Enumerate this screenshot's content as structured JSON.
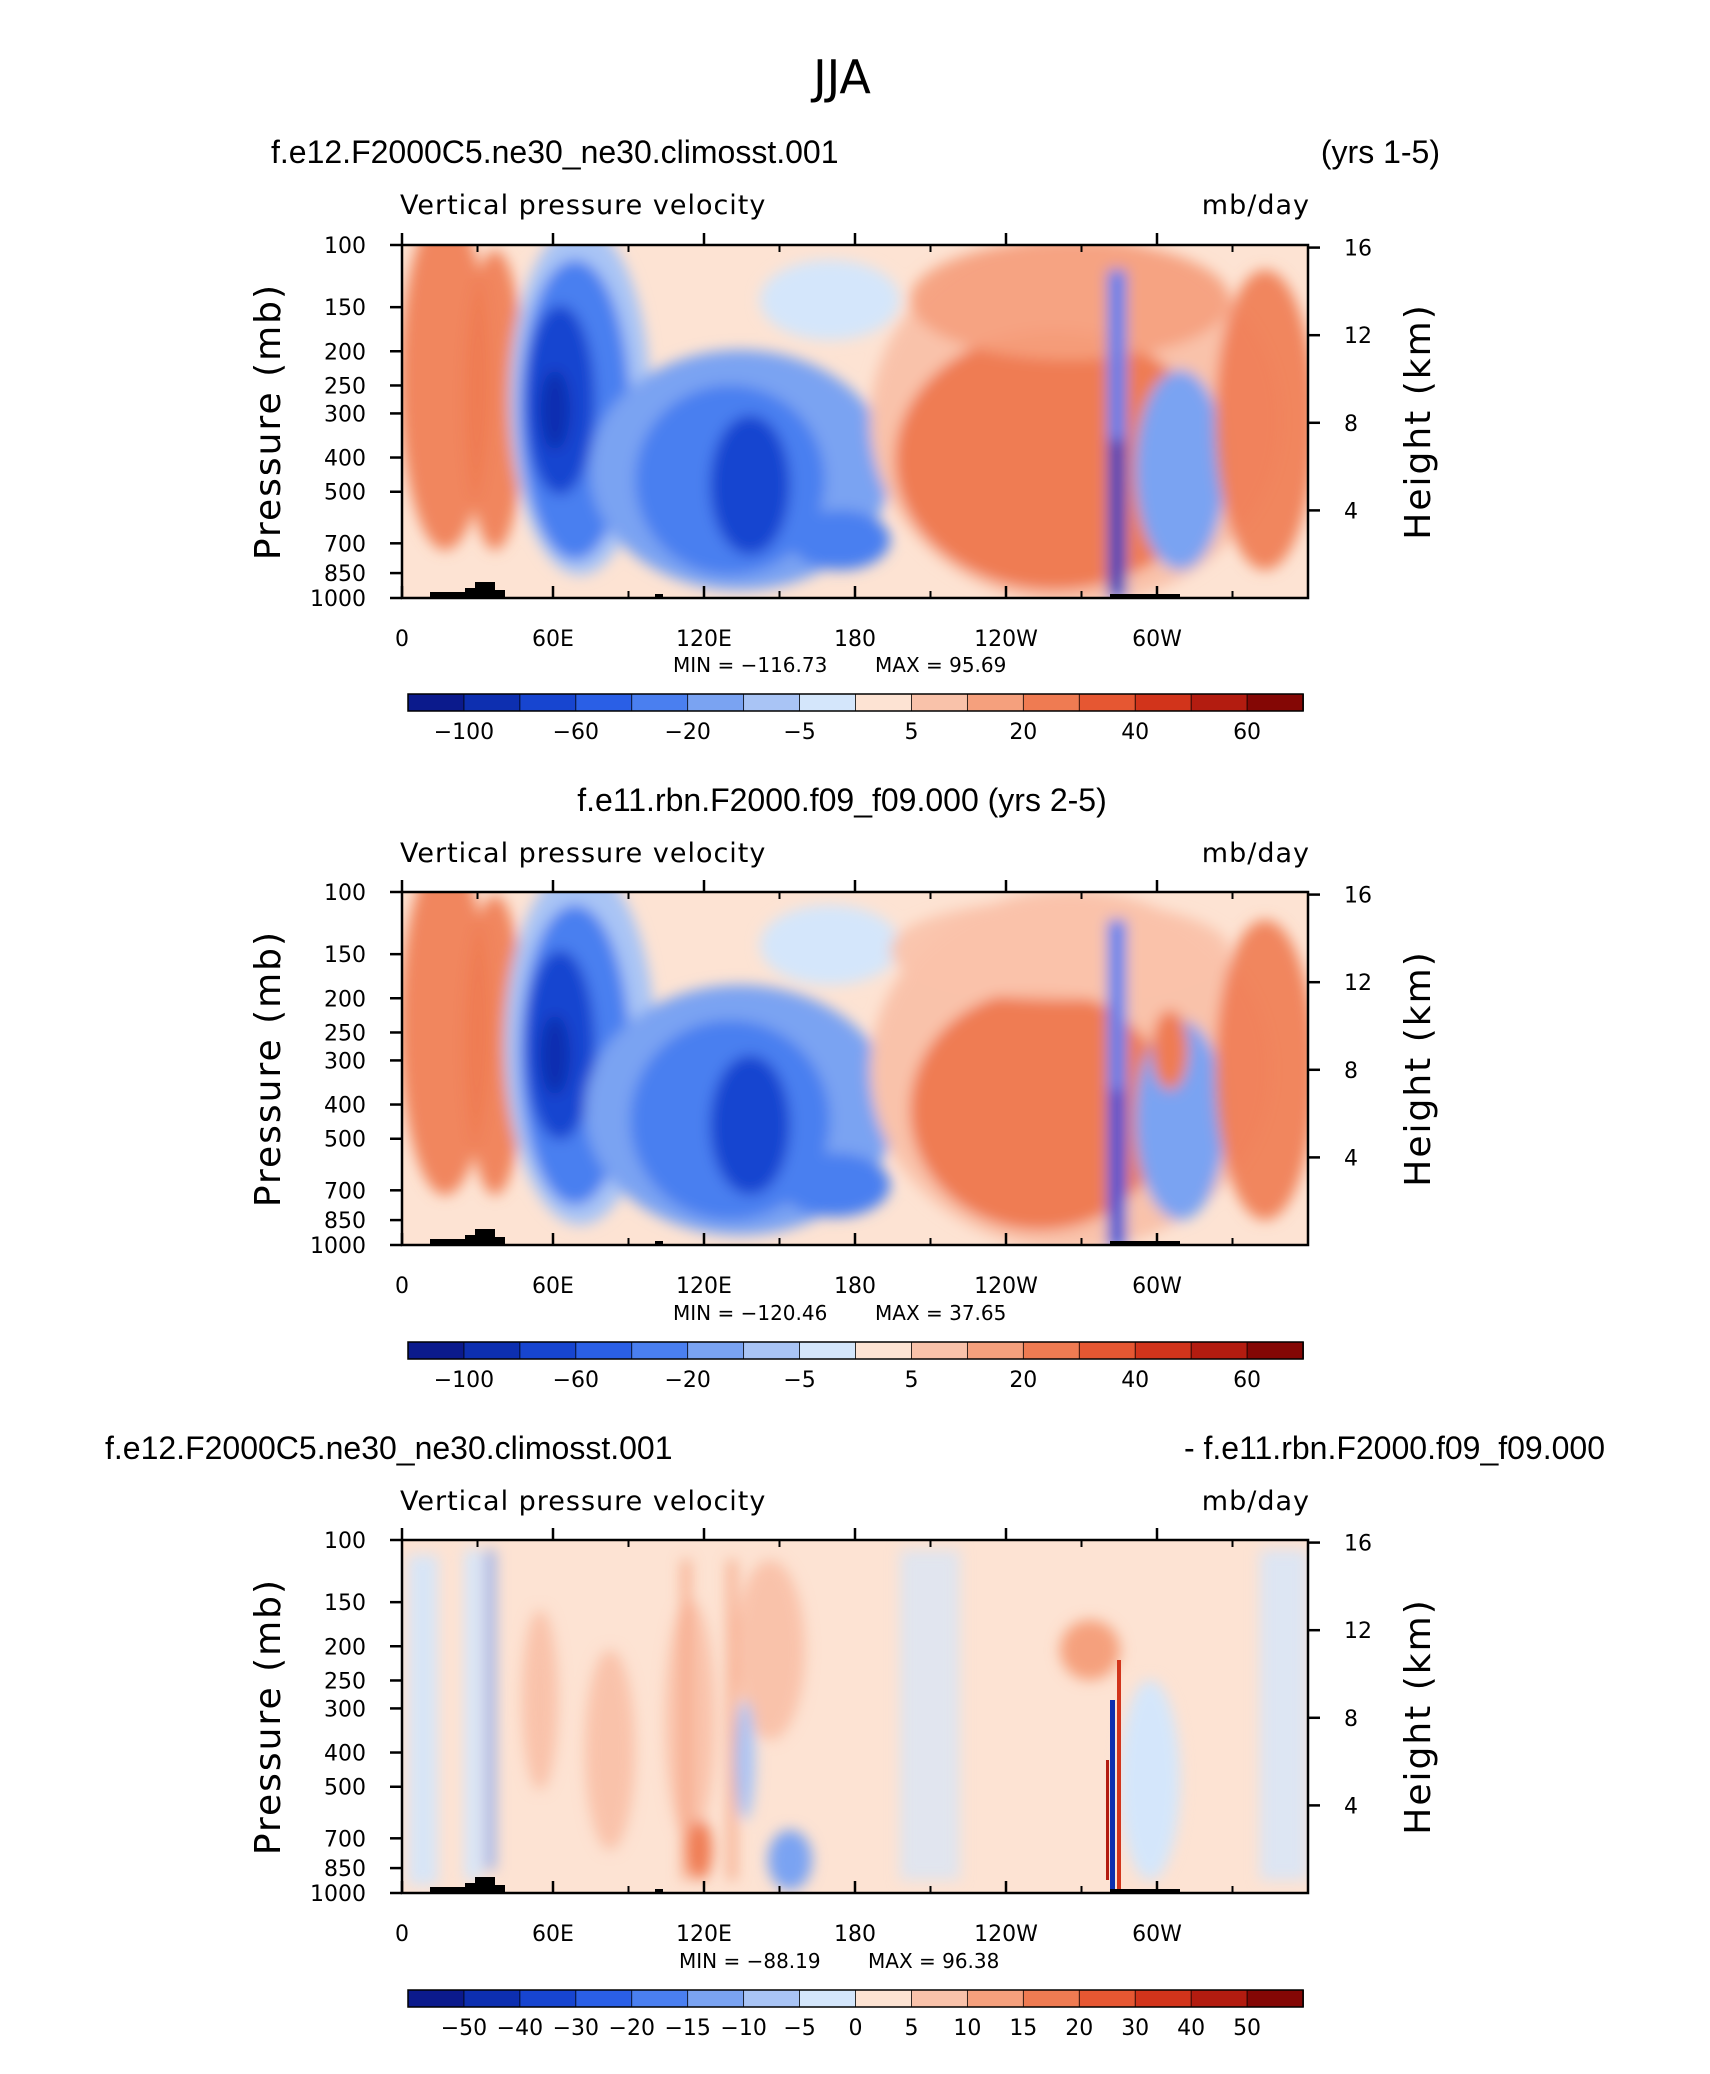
{
  "chart_data": {
    "type": "contour-panels",
    "title": "JJA",
    "x_ticks": [
      "0",
      "60E",
      "120E",
      "180",
      "120W",
      "60W"
    ],
    "left_axis": {
      "label": "Pressure (mb)",
      "ticks": [
        "100",
        "150",
        "200",
        "250",
        "300",
        "400",
        "500",
        "700",
        "850",
        "1000"
      ],
      "values": [
        100,
        150,
        200,
        250,
        300,
        400,
        500,
        700,
        850,
        1000
      ]
    },
    "right_axis": {
      "label": "Height (km)",
      "ticks": [
        "4",
        "8",
        "12",
        "16"
      ],
      "values": [
        4,
        8,
        12,
        16
      ]
    },
    "panels": [
      {
        "left_title": "f.e12.F2000C5.ne30_ne30.climosst.001",
        "right_title": "(yrs 1-5)",
        "center_title": "",
        "variable": "Vertical pressure velocity",
        "units": "mb/day",
        "min_text": "MIN =  −116.73",
        "max_text": "MAX =   95.69",
        "levels": [
          -100,
          -80,
          -60,
          -40,
          -20,
          -10,
          -5,
          0,
          5,
          10,
          20,
          30,
          40,
          50,
          60,
          80
        ],
        "colorbar_labels": [
          "−100",
          "−60",
          "−20",
          "−5",
          "5",
          "20",
          "40",
          "60"
        ],
        "colors": [
          "#0b1a8c",
          "#0d2fb0",
          "#1745d0",
          "#2a5fe6",
          "#4a7ff0",
          "#7aa3f2",
          "#a9c4f5",
          "#d4e6fb",
          "#fde3d3",
          "#f9c2aa",
          "#f5a07d",
          "#ef7b52",
          "#e65732",
          "#d2341b",
          "#b31c10",
          "#840705"
        ]
      },
      {
        "left_title": "",
        "right_title": "",
        "center_title": "f.e11.rbn.F2000.f09_f09.000 (yrs 2-5)",
        "variable": "Vertical pressure velocity",
        "units": "mb/day",
        "min_text": "MIN =  −120.46",
        "max_text": "MAX =   37.65",
        "levels": [
          -100,
          -80,
          -60,
          -40,
          -20,
          -10,
          -5,
          0,
          5,
          10,
          20,
          30,
          40,
          50,
          60,
          80
        ],
        "colorbar_labels": [
          "−100",
          "−60",
          "−20",
          "−5",
          "5",
          "20",
          "40",
          "60"
        ],
        "colors": [
          "#0b1a8c",
          "#0d2fb0",
          "#1745d0",
          "#2a5fe6",
          "#4a7ff0",
          "#7aa3f2",
          "#a9c4f5",
          "#d4e6fb",
          "#fde3d3",
          "#f9c2aa",
          "#f5a07d",
          "#ef7b52",
          "#e65732",
          "#d2341b",
          "#b31c10",
          "#840705"
        ]
      },
      {
        "left_title": "f.e12.F2000C5.ne30_ne30.climosst.001",
        "right_title": "- f.e11.rbn.F2000.f09_f09.000",
        "center_title": "",
        "variable": "Vertical pressure velocity",
        "units": "mb/day",
        "min_text": "MIN =  −88.19",
        "max_text": "MAX =   96.38",
        "levels": [
          -50,
          -40,
          -30,
          -20,
          -15,
          -10,
          -5,
          0,
          5,
          10,
          15,
          20,
          30,
          40,
          50
        ],
        "colorbar_labels": [
          "−50",
          "−40",
          "−30",
          "−20",
          "−15",
          "−10",
          "−5",
          "0",
          "5",
          "10",
          "15",
          "20",
          "30",
          "40",
          "50"
        ],
        "colors": [
          "#0b1a8c",
          "#0d2fb0",
          "#1745d0",
          "#2a5fe6",
          "#4a7ff0",
          "#7aa3f2",
          "#a9c4f5",
          "#d4e6fb",
          "#fde3d3",
          "#f9c2aa",
          "#f5a07d",
          "#ef7b52",
          "#e65732",
          "#d2341b",
          "#b31c10",
          "#840705"
        ]
      }
    ]
  }
}
